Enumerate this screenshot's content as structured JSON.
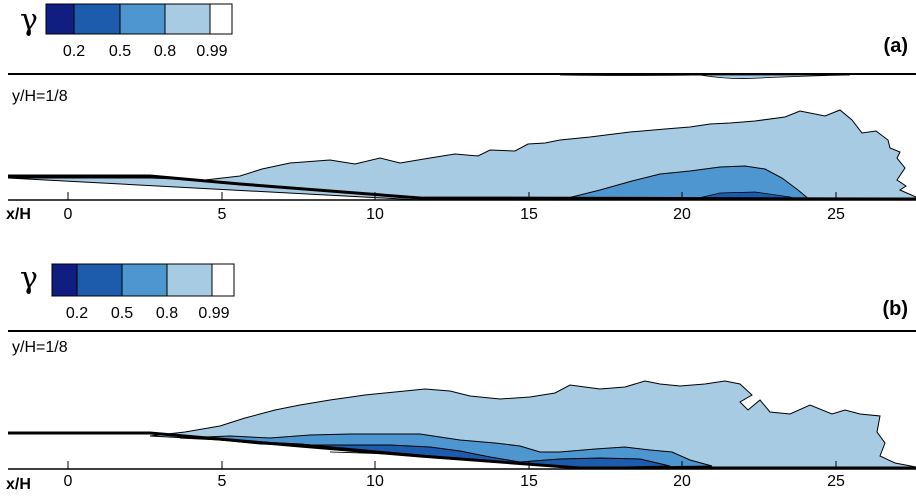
{
  "panels": [
    {
      "label": "(a)",
      "position_label": "y/H=1/8",
      "x_axis_label": "x/H",
      "x_ticks": [
        "0",
        "5",
        "10",
        "15",
        "20",
        "25"
      ]
    },
    {
      "label": "(b)",
      "position_label": "y/H=1/8",
      "x_axis_label": "x/H",
      "x_ticks": [
        "0",
        "5",
        "10",
        "15",
        "20",
        "25"
      ]
    }
  ],
  "legend": {
    "symbol": "γ",
    "levels": [
      "0.2",
      "0.5",
      "0.8",
      "0.99"
    ],
    "colors": [
      "#0f1e80",
      "#1d5cad",
      "#4d96cf",
      "#a6cbe3",
      "#ffffff"
    ]
  }
}
